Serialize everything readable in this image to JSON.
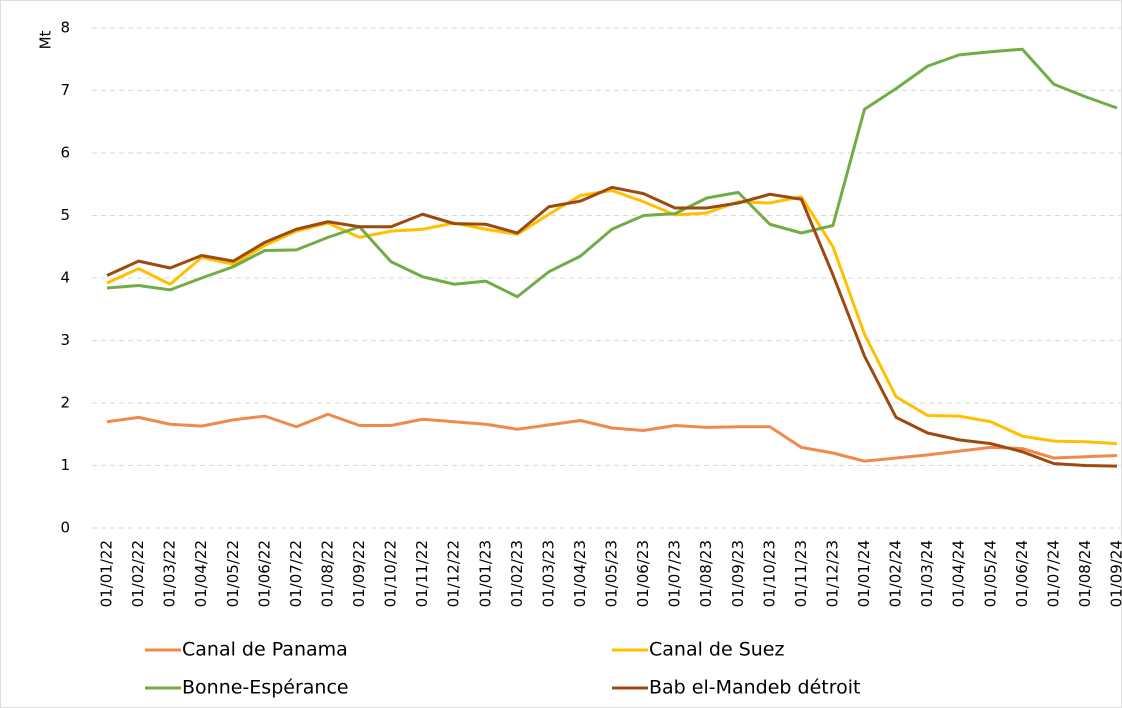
{
  "chart_data": {
    "type": "line",
    "y_label": "Mt",
    "categories": [
      "01/01/22",
      "01/02/22",
      "01/03/22",
      "01/04/22",
      "01/05/22",
      "01/06/22",
      "01/07/22",
      "01/08/22",
      "01/09/22",
      "01/10/22",
      "01/11/22",
      "01/12/22",
      "01/01/23",
      "01/02/23",
      "01/03/23",
      "01/04/23",
      "01/05/23",
      "01/06/23",
      "01/07/23",
      "01/08/23",
      "01/09/23",
      "01/10/23",
      "01/11/23",
      "01/12/23",
      "01/01/24",
      "01/02/24",
      "01/03/24",
      "01/04/24",
      "01/05/24",
      "01/06/24",
      "01/07/24",
      "01/08/24",
      "01/09/24"
    ],
    "series": [
      {
        "name": "Canal de Panama",
        "color": "#f08a4b",
        "values": [
          1.7,
          1.77,
          1.66,
          1.63,
          1.73,
          1.79,
          1.62,
          1.82,
          1.64,
          1.64,
          1.74,
          1.7,
          1.66,
          1.58,
          1.65,
          1.72,
          1.6,
          1.56,
          1.64,
          1.61,
          1.62,
          1.62,
          1.29,
          1.2,
          1.07,
          1.12,
          1.17,
          1.23,
          1.29,
          1.27,
          1.12,
          1.14,
          1.16
        ]
      },
      {
        "name": "Canal de Suez",
        "color": "#ffc000",
        "values": [
          3.92,
          4.15,
          3.9,
          4.33,
          4.22,
          4.52,
          4.75,
          4.88,
          4.65,
          4.75,
          4.78,
          4.88,
          4.78,
          4.7,
          5.02,
          5.32,
          5.4,
          5.22,
          5.01,
          5.04,
          5.22,
          5.2,
          5.3,
          4.5,
          3.1,
          2.1,
          1.8,
          1.79,
          1.7,
          1.47,
          1.39,
          1.38,
          1.35
        ]
      },
      {
        "name": "Bonne-Espérance",
        "color": "#70ad47",
        "values": [
          3.84,
          3.88,
          3.81,
          4.0,
          4.18,
          4.44,
          4.45,
          4.65,
          4.82,
          4.26,
          4.02,
          3.9,
          3.95,
          3.7,
          4.1,
          4.35,
          4.78,
          5.0,
          5.03,
          5.28,
          5.37,
          4.86,
          4.72,
          4.84,
          6.7,
          7.03,
          7.39,
          7.57,
          7.62,
          7.66,
          7.1,
          6.9,
          6.72
        ]
      },
      {
        "name": "Bab el-Mandeb détroit",
        "color": "#9c4a10",
        "values": [
          4.04,
          4.27,
          4.16,
          4.36,
          4.27,
          4.57,
          4.78,
          4.9,
          4.82,
          4.82,
          5.02,
          4.87,
          4.86,
          4.72,
          5.14,
          5.23,
          5.45,
          5.35,
          5.12,
          5.12,
          5.2,
          5.34,
          5.26,
          4.05,
          2.75,
          1.77,
          1.52,
          1.41,
          1.35,
          1.22,
          1.03,
          1.0,
          0.99
        ]
      }
    ],
    "ylim": [
      0,
      8
    ],
    "yticks": [
      0,
      1,
      2,
      3,
      4,
      5,
      6,
      7,
      8
    ],
    "grid": true
  }
}
